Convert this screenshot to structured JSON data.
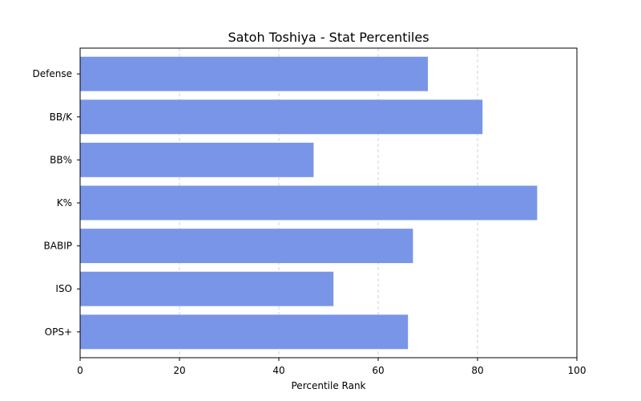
{
  "chart_data": {
    "type": "bar",
    "orientation": "horizontal",
    "title": "Satoh Toshiya - Stat Percentiles",
    "xlabel": "Percentile Rank",
    "ylabel": "",
    "xlim": [
      0,
      100
    ],
    "xticks": [
      0,
      20,
      40,
      60,
      80,
      100
    ],
    "categories": [
      "OPS+",
      "ISO",
      "BABIP",
      "K%",
      "BB%",
      "BB/K",
      "Defense"
    ],
    "values": [
      66,
      51,
      67,
      92,
      47,
      81,
      70
    ],
    "bar_color": "#7895e8",
    "grid": "x, dashed",
    "legend": "none"
  }
}
